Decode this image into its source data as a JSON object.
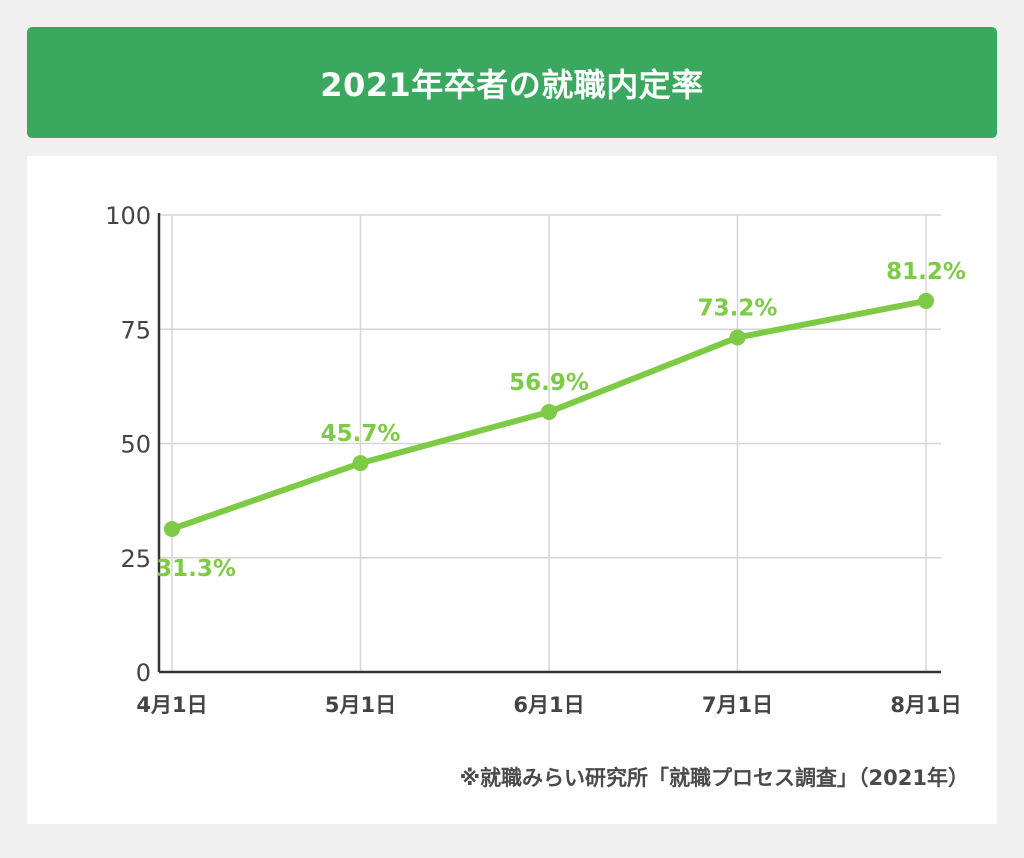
{
  "header": {
    "title": "2021年卒者の就職内定率"
  },
  "chart_data": {
    "type": "line",
    "title": "2021年卒者の就職内定率",
    "categories": [
      "4月1日",
      "5月1日",
      "6月1日",
      "7月1日",
      "8月1日"
    ],
    "series": [
      {
        "values": [
          31.3,
          45.7,
          56.9,
          73.2,
          81.2
        ],
        "data_labels": [
          "31.3%",
          "45.7%",
          "56.9%",
          "73.2%",
          "81.2%"
        ],
        "color": "#7dcb45"
      }
    ],
    "ylim": [
      0,
      100
    ],
    "yticks": [
      0,
      25,
      50,
      75,
      100
    ],
    "grid": true,
    "xlabel": "",
    "ylabel": ""
  },
  "source": {
    "text": "※就職みらい研究所「就職プロセス調査」（2021年）"
  }
}
